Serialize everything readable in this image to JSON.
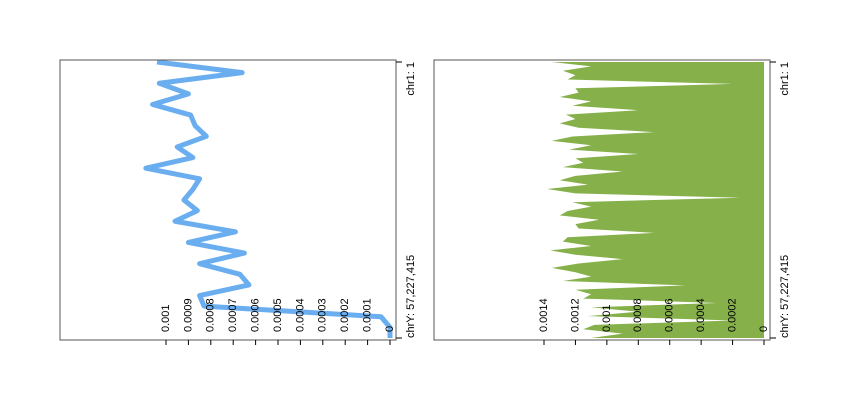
{
  "chart_data": [
    {
      "type": "line",
      "color": "#6aaef0",
      "position_labels": [
        "chr1: 1",
        "chrY: 57,227,415"
      ],
      "values": [
        0.00104,
        0.00066,
        0.00103,
        0.0009,
        0.00106,
        0.00089,
        0.00087,
        0.00082,
        0.00095,
        0.00088,
        0.00109,
        0.00085,
        0.00088,
        0.00092,
        0.00086,
        0.00096,
        0.00069,
        0.0009,
        0.00065,
        0.00085,
        0.00067,
        0.00063,
        0.00085,
        0.00083,
        4e-05,
        0,
        0
      ],
      "xlim": [
        0,
        0.001
      ],
      "xticks": [
        0,
        0.0001,
        0.0002,
        0.0003,
        0.0004,
        0.0005,
        0.0006,
        0.0007,
        0.0008,
        0.0009,
        0.001
      ]
    },
    {
      "type": "area",
      "color": "#86b04a",
      "position_labels": [
        "chr1: 1",
        "chrY: 57,227,415"
      ],
      "values": [
        0.00135,
        0.0011,
        0.00128,
        0.0012,
        0.00125,
        0.0002,
        0.0012,
        0.00118,
        0.0013,
        0.0011,
        0.00122,
        0.0008,
        0.00126,
        0.0012,
        0.0013,
        0.00118,
        0.0007,
        0.00122,
        0.00135,
        0.0011,
        0.00124,
        0.0008,
        0.0012,
        0.00115,
        0.00128,
        0.0009,
        0.0012,
        0.0013,
        0.00112,
        0.00138,
        0.0012,
        0.00015,
        0.00122,
        0.0011,
        0.00125,
        0.0013,
        0.00105,
        0.0012,
        0.00118,
        0.0007,
        0.00125,
        0.00128,
        0.0011,
        0.00136,
        0.0012,
        0.0009,
        0.00118,
        0.00135,
        0.0012,
        0.0011,
        0.00128,
        0.0005,
        0.0012,
        0.0011,
        0.00115,
        0.0003,
        0.0011,
        0.0008,
        0.00112,
        0.0002,
        0.00108,
        0.00115,
        0.0009,
        0.0011
      ],
      "xlim": [
        0,
        0.0014
      ],
      "xticks": [
        0,
        0.0002,
        0.0004,
        0.0006,
        0.0008,
        0.001,
        0.0012,
        0.0014
      ]
    }
  ]
}
